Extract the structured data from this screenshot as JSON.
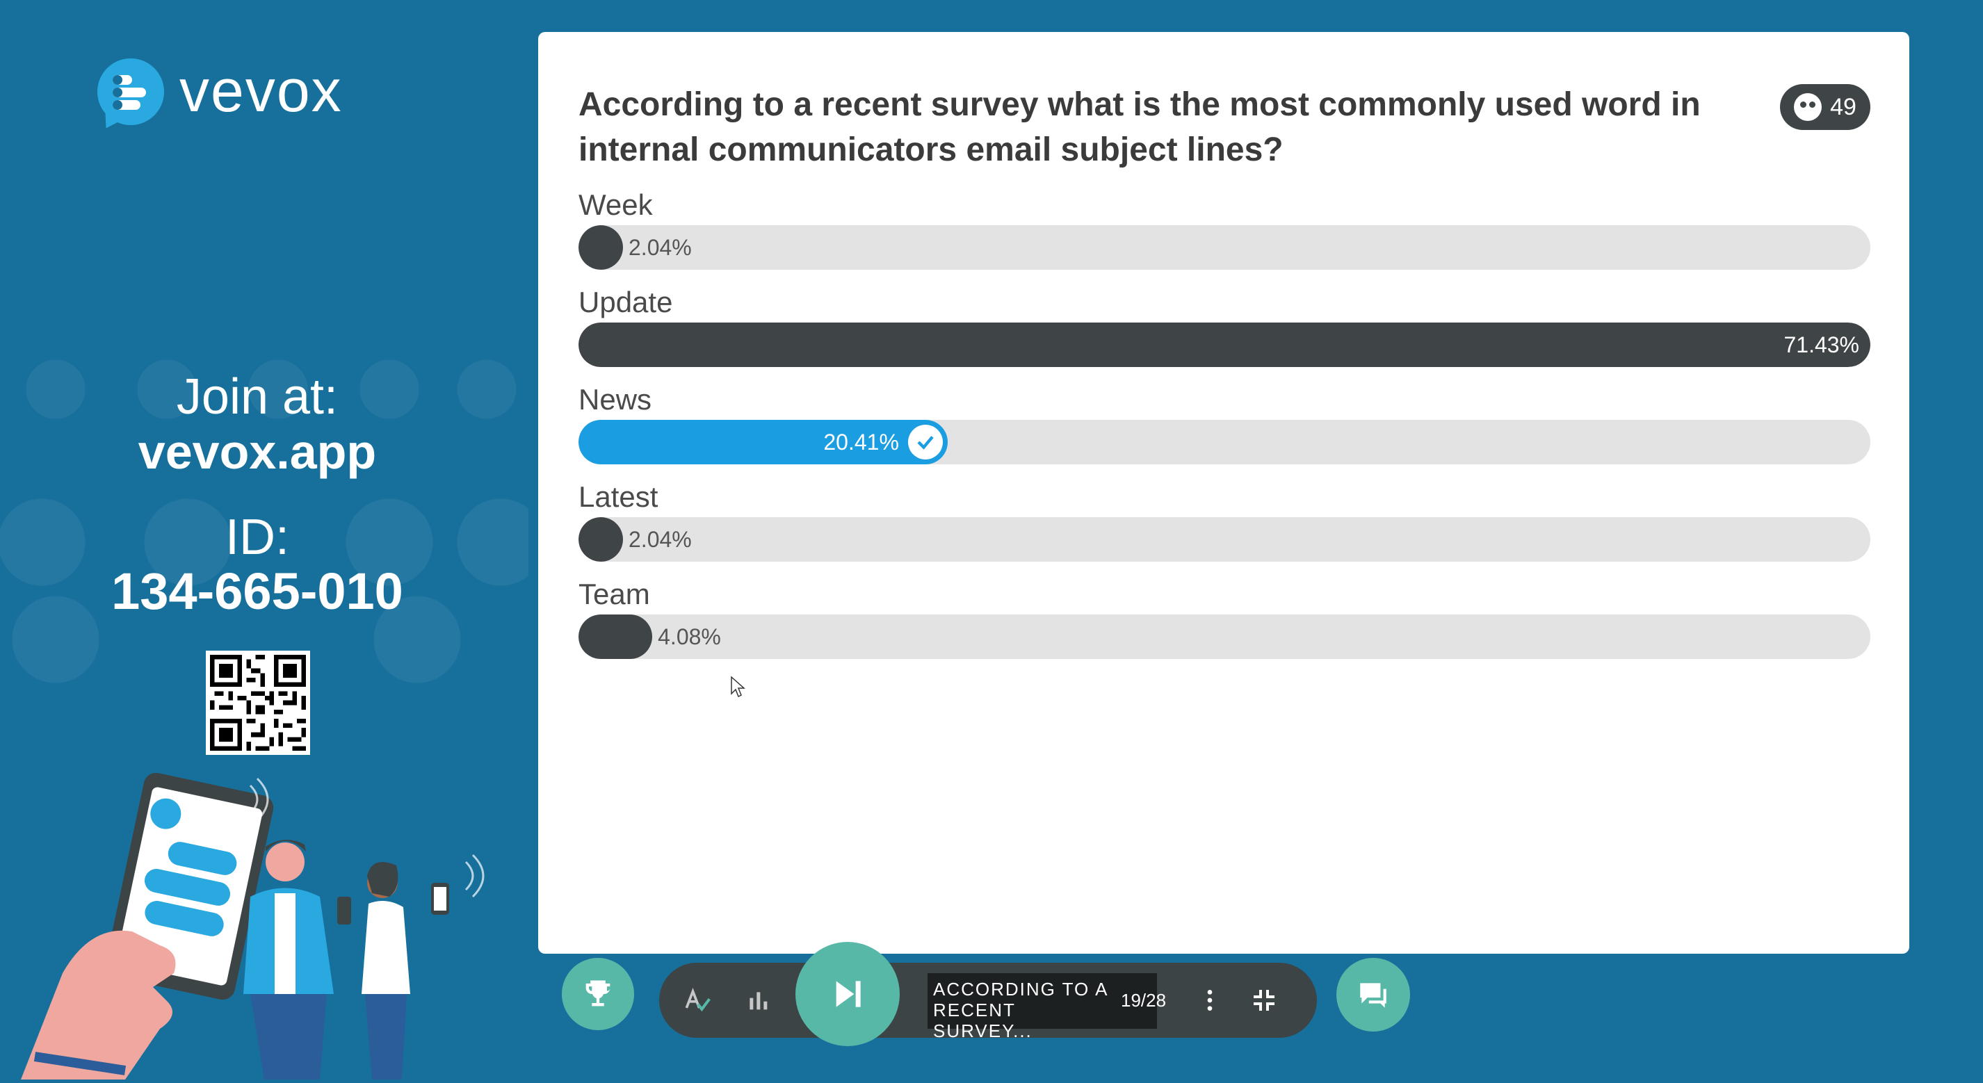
{
  "brand": {
    "name": "vevox",
    "accent": "#2aa8e0",
    "background": "#17709c",
    "button_color": "#58b8a8"
  },
  "join": {
    "label": "Join at:",
    "url": "vevox.app",
    "id_label": "ID:",
    "id_value": "134-665-010"
  },
  "poll": {
    "question": "According to a recent survey what is the most commonly used word in internal communicators email subject lines?",
    "participants": "49",
    "options": [
      {
        "label": "Week",
        "percent_text": "2.04%",
        "percent": 2.04,
        "correct": false
      },
      {
        "label": "Update",
        "percent_text": "71.43%",
        "percent": 71.43,
        "correct": false
      },
      {
        "label": "News",
        "percent_text": "20.41%",
        "percent": 20.41,
        "correct": true
      },
      {
        "label": "Latest",
        "percent_text": "2.04%",
        "percent": 2.04,
        "correct": false
      },
      {
        "label": "Team",
        "percent_text": "4.08%",
        "percent": 4.08,
        "correct": false
      }
    ],
    "colors": {
      "answer": "#3f4547",
      "correct": "#1a9ee1",
      "track": "#e3e3e3"
    }
  },
  "toolbar": {
    "slide_title": "ACCORDING TO A RECENT SURVEY...",
    "slide_counter": "19/28"
  }
}
